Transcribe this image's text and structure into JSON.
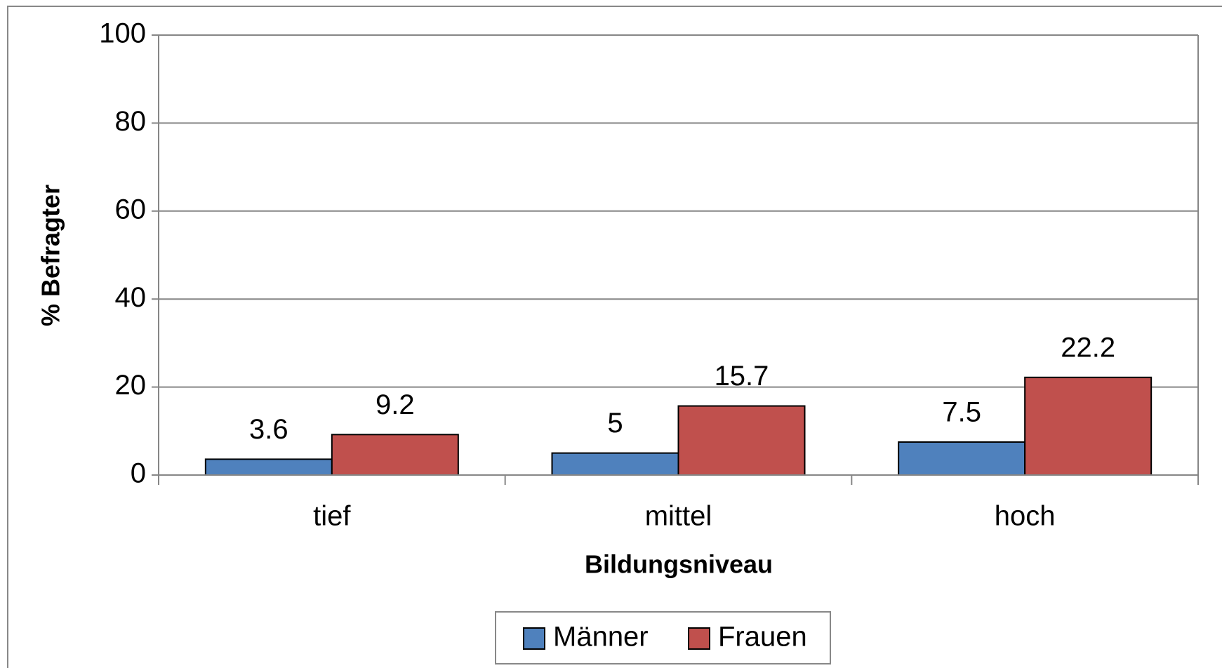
{
  "chart_data": {
    "type": "bar",
    "categories": [
      "tief",
      "mittel",
      "hoch"
    ],
    "series": [
      {
        "name": "Männer",
        "color": "#4f81bd",
        "values": [
          3.6,
          5,
          7.5
        ]
      },
      {
        "name": "Frauen",
        "color": "#c0504d",
        "values": [
          9.2,
          15.7,
          22.2
        ]
      }
    ],
    "xlabel": "Bildungsniveau",
    "ylabel": "% Befragter",
    "ylim": [
      0,
      100
    ],
    "yticks": [
      0,
      20,
      40,
      60,
      80,
      100
    ],
    "grid": true,
    "legend": "bottom"
  }
}
